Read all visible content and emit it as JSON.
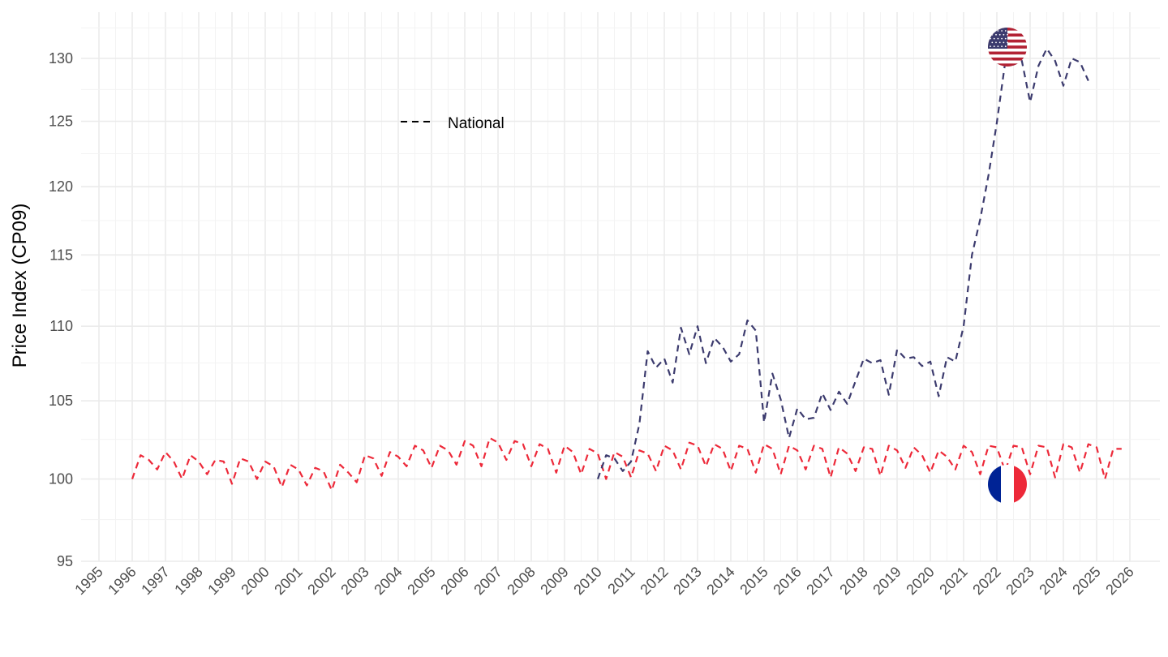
{
  "chart_data": {
    "type": "line",
    "ylabel": "Price Index (CP09)",
    "xlabel": "",
    "xlim": [
      1995,
      2026
    ],
    "ylim": [
      95,
      132
    ],
    "y_scale": "log",
    "y_ticks": [
      95,
      100,
      105,
      110,
      115,
      120,
      125,
      130
    ],
    "y_minor_ticks": [
      97.5,
      102.5,
      107.5,
      112.5,
      117.5,
      122.5,
      127.5,
      132.5
    ],
    "x_ticks": [
      "1995",
      "1996",
      "1997",
      "1998",
      "1999",
      "2000",
      "2001",
      "2002",
      "2003",
      "2004",
      "2005",
      "2006",
      "2007",
      "2008",
      "2009",
      "2010",
      "2011",
      "2012",
      "2013",
      "2014",
      "2015",
      "2016",
      "2017",
      "2018",
      "2019",
      "2020",
      "2021",
      "2022",
      "2023",
      "2024",
      "2025",
      "2026"
    ],
    "grid": true,
    "legend": {
      "position": "top-left",
      "entries": [
        {
          "label": "National",
          "style": "dashed"
        }
      ]
    },
    "series": [
      {
        "country": "France",
        "color": "#ED2939",
        "flag": "france-flag",
        "points": [
          [
            1996.0,
            100.0
          ],
          [
            1996.25,
            101.5
          ],
          [
            1996.5,
            101.2
          ],
          [
            1996.75,
            100.6
          ],
          [
            1997.0,
            101.7
          ],
          [
            1997.25,
            101.1
          ],
          [
            1997.5,
            100.0
          ],
          [
            1997.75,
            101.5
          ],
          [
            1998.0,
            101.1
          ],
          [
            1998.25,
            100.3
          ],
          [
            1998.5,
            101.2
          ],
          [
            1998.75,
            101.1
          ],
          [
            1999.0,
            99.7
          ],
          [
            1999.25,
            101.3
          ],
          [
            1999.5,
            101.1
          ],
          [
            1999.75,
            100.0
          ],
          [
            2000.0,
            101.1
          ],
          [
            2000.25,
            100.8
          ],
          [
            2000.5,
            99.5
          ],
          [
            2000.75,
            100.9
          ],
          [
            2001.0,
            100.6
          ],
          [
            2001.25,
            99.6
          ],
          [
            2001.5,
            100.7
          ],
          [
            2001.75,
            100.5
          ],
          [
            2002.0,
            99.3
          ],
          [
            2002.25,
            100.9
          ],
          [
            2002.5,
            100.4
          ],
          [
            2002.75,
            99.8
          ],
          [
            2003.0,
            101.5
          ],
          [
            2003.25,
            101.3
          ],
          [
            2003.5,
            100.2
          ],
          [
            2003.75,
            101.7
          ],
          [
            2004.0,
            101.4
          ],
          [
            2004.25,
            100.8
          ],
          [
            2004.5,
            102.1
          ],
          [
            2004.75,
            101.8
          ],
          [
            2005.0,
            100.7
          ],
          [
            2005.25,
            102.1
          ],
          [
            2005.5,
            101.8
          ],
          [
            2005.75,
            100.9
          ],
          [
            2006.0,
            102.4
          ],
          [
            2006.25,
            102.1
          ],
          [
            2006.5,
            100.8
          ],
          [
            2006.75,
            102.6
          ],
          [
            2007.0,
            102.3
          ],
          [
            2007.25,
            101.2
          ],
          [
            2007.5,
            102.4
          ],
          [
            2007.75,
            102.2
          ],
          [
            2008.0,
            100.8
          ],
          [
            2008.25,
            102.2
          ],
          [
            2008.5,
            101.9
          ],
          [
            2008.75,
            100.4
          ],
          [
            2009.0,
            102.1
          ],
          [
            2009.25,
            101.7
          ],
          [
            2009.5,
            100.3
          ],
          [
            2009.75,
            101.9
          ],
          [
            2010.0,
            101.6
          ],
          [
            2010.25,
            100.0
          ],
          [
            2010.5,
            101.7
          ],
          [
            2010.75,
            101.4
          ],
          [
            2011.0,
            100.1
          ],
          [
            2011.25,
            101.8
          ],
          [
            2011.5,
            101.6
          ],
          [
            2011.75,
            100.5
          ],
          [
            2012.0,
            102.1
          ],
          [
            2012.25,
            101.8
          ],
          [
            2012.5,
            100.6
          ],
          [
            2012.75,
            102.3
          ],
          [
            2013.0,
            102.1
          ],
          [
            2013.25,
            100.8
          ],
          [
            2013.5,
            102.2
          ],
          [
            2013.75,
            101.9
          ],
          [
            2014.0,
            100.5
          ],
          [
            2014.25,
            102.1
          ],
          [
            2014.5,
            101.9
          ],
          [
            2014.75,
            100.4
          ],
          [
            2015.0,
            102.2
          ],
          [
            2015.25,
            101.9
          ],
          [
            2015.5,
            100.3
          ],
          [
            2015.75,
            102.1
          ],
          [
            2016.0,
            101.8
          ],
          [
            2016.25,
            100.6
          ],
          [
            2016.5,
            102.1
          ],
          [
            2016.75,
            101.9
          ],
          [
            2017.0,
            100.1
          ],
          [
            2017.25,
            102.0
          ],
          [
            2017.5,
            101.6
          ],
          [
            2017.75,
            100.5
          ],
          [
            2018.0,
            102.0
          ],
          [
            2018.25,
            101.9
          ],
          [
            2018.5,
            100.2
          ],
          [
            2018.75,
            102.1
          ],
          [
            2019.0,
            101.8
          ],
          [
            2019.25,
            100.7
          ],
          [
            2019.5,
            102.0
          ],
          [
            2019.75,
            101.5
          ],
          [
            2020.0,
            100.4
          ],
          [
            2020.25,
            101.8
          ],
          [
            2020.5,
            101.4
          ],
          [
            2020.75,
            100.6
          ],
          [
            2021.0,
            102.1
          ],
          [
            2021.25,
            101.7
          ],
          [
            2021.5,
            100.3
          ],
          [
            2021.75,
            102.1
          ],
          [
            2022.0,
            102.0
          ],
          [
            2022.25,
            100.5
          ],
          [
            2022.5,
            102.1
          ],
          [
            2022.75,
            102.0
          ],
          [
            2023.0,
            100.3
          ],
          [
            2023.25,
            102.1
          ],
          [
            2023.5,
            102.0
          ],
          [
            2023.75,
            100.1
          ],
          [
            2024.0,
            102.2
          ],
          [
            2024.25,
            102.0
          ],
          [
            2024.5,
            100.4
          ],
          [
            2024.75,
            102.2
          ],
          [
            2025.0,
            102.0
          ],
          [
            2025.25,
            100.0
          ],
          [
            2025.5,
            101.9
          ],
          [
            2025.75,
            101.9
          ]
        ]
      },
      {
        "country": "United States",
        "color": "#3C3B6E",
        "flag": "us-flag",
        "points": [
          [
            2010.0,
            100.0
          ],
          [
            2010.25,
            101.5
          ],
          [
            2010.5,
            101.3
          ],
          [
            2010.75,
            100.5
          ],
          [
            2011.0,
            101.1
          ],
          [
            2011.25,
            103.5
          ],
          [
            2011.5,
            108.3
          ],
          [
            2011.75,
            107.2
          ],
          [
            2012.0,
            107.8
          ],
          [
            2012.25,
            106.2
          ],
          [
            2012.5,
            109.9
          ],
          [
            2012.75,
            108.1
          ],
          [
            2013.0,
            110.0
          ],
          [
            2013.25,
            107.5
          ],
          [
            2013.5,
            109.2
          ],
          [
            2013.75,
            108.6
          ],
          [
            2014.0,
            107.6
          ],
          [
            2014.25,
            108.1
          ],
          [
            2014.5,
            110.4
          ],
          [
            2014.75,
            109.7
          ],
          [
            2015.0,
            103.6
          ],
          [
            2015.25,
            106.8
          ],
          [
            2015.5,
            105.1
          ],
          [
            2015.75,
            102.6
          ],
          [
            2016.0,
            104.5
          ],
          [
            2016.25,
            103.8
          ],
          [
            2016.5,
            103.9
          ],
          [
            2016.75,
            105.5
          ],
          [
            2017.0,
            104.4
          ],
          [
            2017.25,
            105.6
          ],
          [
            2017.5,
            104.8
          ],
          [
            2017.75,
            106.3
          ],
          [
            2018.0,
            107.8
          ],
          [
            2018.25,
            107.5
          ],
          [
            2018.5,
            107.7
          ],
          [
            2018.75,
            105.4
          ],
          [
            2019.0,
            108.4
          ],
          [
            2019.25,
            107.8
          ],
          [
            2019.5,
            107.9
          ],
          [
            2019.75,
            107.3
          ],
          [
            2020.0,
            107.6
          ],
          [
            2020.25,
            105.3
          ],
          [
            2020.5,
            107.9
          ],
          [
            2020.75,
            107.6
          ],
          [
            2021.0,
            110.0
          ],
          [
            2021.25,
            115.0
          ],
          [
            2021.5,
            117.6
          ],
          [
            2021.75,
            120.9
          ],
          [
            2022.0,
            124.9
          ],
          [
            2022.25,
            129.7
          ],
          [
            2022.5,
            129.5
          ],
          [
            2022.75,
            129.8
          ],
          [
            2023.0,
            126.5
          ],
          [
            2023.25,
            129.4
          ],
          [
            2023.5,
            130.8
          ],
          [
            2023.75,
            129.8
          ],
          [
            2024.0,
            127.8
          ],
          [
            2024.25,
            130.0
          ],
          [
            2024.5,
            129.7
          ],
          [
            2024.75,
            128.2
          ]
        ]
      }
    ]
  }
}
